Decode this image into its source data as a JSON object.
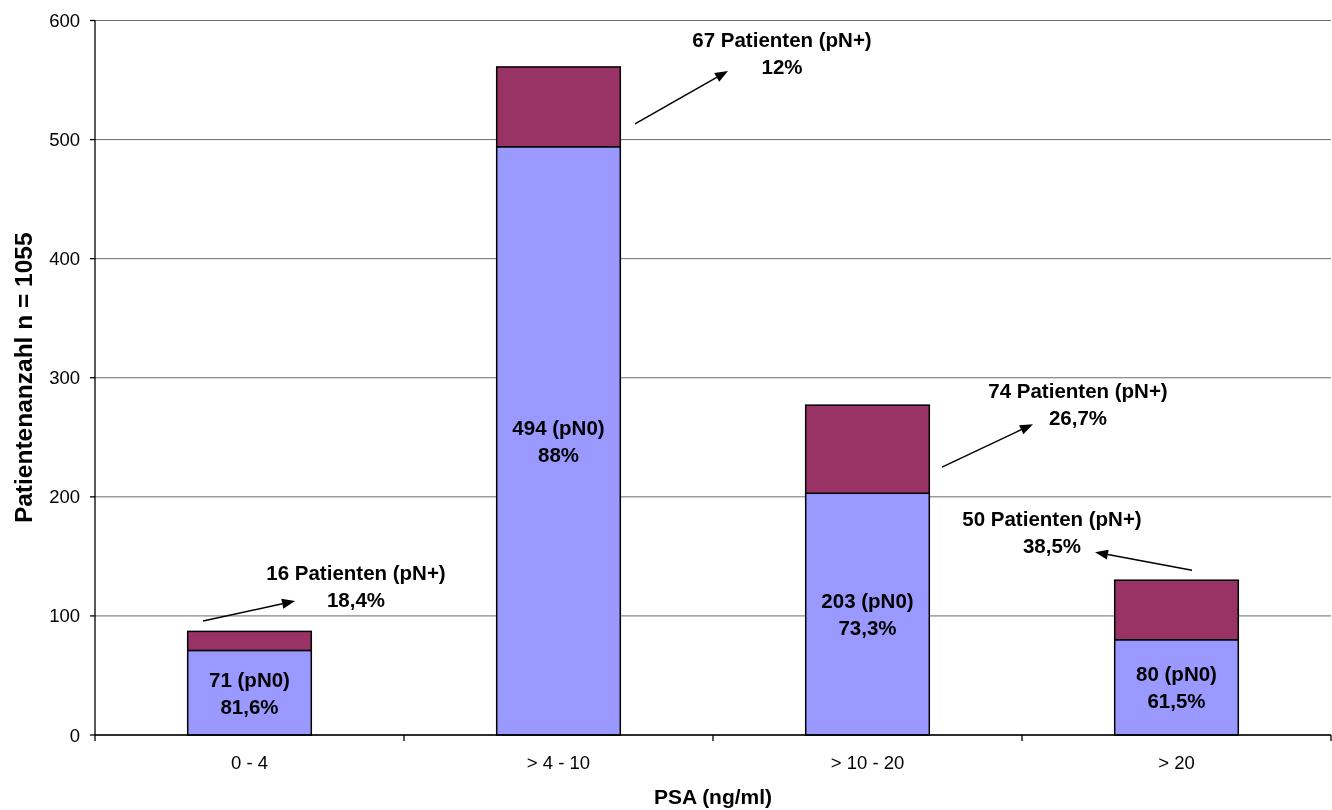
{
  "chart_data": {
    "type": "bar",
    "stacked": true,
    "xlabel": "PSA (ng/ml)",
    "ylabel": "Patientenanzahl n = 1055",
    "categories": [
      "0 - 4",
      "> 4 - 10",
      "> 10 - 20",
      "> 20"
    ],
    "series": [
      {
        "color": "#9999ff",
        "values": [
          71,
          494,
          203,
          80
        ],
        "value_labels": [
          "71 (pN0)\n81,6%",
          "494 (pN0)\n88%",
          "203 (pN0)\n73,3%",
          "80 (pN0)\n61,5%"
        ]
      },
      {
        "color": "#993366",
        "values": [
          16,
          67,
          74,
          50
        ]
      }
    ],
    "ylim": [
      0,
      600
    ],
    "yticks": [
      0,
      100,
      200,
      300,
      400,
      500,
      600
    ],
    "grid": "y",
    "annotations": [
      {
        "text": "16 Patienten (pN+)\n18,4%",
        "x": "0 - 4",
        "y": 87
      },
      "67 Patienten (pN+)\n12%",
      "74 Patienten (pN+)\n26,7%",
      {
        "text": "50 Patienten (pN+)\n38,5%",
        "x": "> 20",
        "y": 130
      }
    ]
  }
}
